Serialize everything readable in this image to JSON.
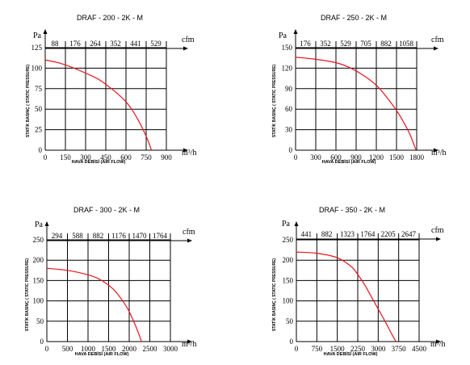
{
  "colors": {
    "curve": "#e8141e",
    "grid": "#000000",
    "text": "#000000"
  },
  "chart_data": [
    {
      "type": "line",
      "title": "DRAF - 200 - 2K - M",
      "y_unit": "Pa",
      "top_unit": "cfm",
      "x_unit": "m³/h",
      "ylabel": "STATİK BASINÇ ( STATIC PRESSURE)",
      "xlabel": "HAVA DEBİSİ (AIR FLOW)",
      "xlim": [
        0,
        900
      ],
      "ylim": [
        0,
        125
      ],
      "x_ticks": [
        0,
        150,
        300,
        450,
        600,
        750,
        900
      ],
      "y_ticks": [
        0,
        25,
        50,
        75,
        100,
        125
      ],
      "cfm_ticks": [
        88,
        176,
        264,
        352,
        441,
        529
      ],
      "grid": true,
      "series": [
        {
          "x": [
            0,
            100,
            200,
            300,
            400,
            500,
            550,
            600,
            650,
            700,
            750,
            790
          ],
          "y": [
            110,
            106.5,
            101,
            94,
            86,
            74,
            67,
            59,
            48,
            34,
            17,
            0
          ]
        }
      ]
    },
    {
      "type": "line",
      "title": "DRAF - 250 - 2K - M",
      "y_unit": "Pa",
      "top_unit": "cfm",
      "x_unit": "m³/h",
      "ylabel": "STATİK BASINÇ ( STATIC PRESSURE)",
      "xlabel": "HAVA DEBİSİ (AIR FLOW)",
      "xlim": [
        0,
        1800
      ],
      "ylim": [
        0,
        150
      ],
      "x_ticks": [
        0,
        300,
        600,
        900,
        1200,
        1500,
        1800
      ],
      "y_ticks": [
        0,
        30,
        60,
        90,
        120,
        150
      ],
      "cfm_ticks": [
        176,
        352,
        529,
        705,
        882,
        1058
      ],
      "grid": true,
      "series": [
        {
          "x": [
            0,
            300,
            600,
            800,
            1000,
            1200,
            1350,
            1500,
            1600,
            1700,
            1790
          ],
          "y": [
            136,
            133,
            128,
            121,
            110,
            95,
            78,
            58,
            42,
            23,
            0
          ]
        }
      ]
    },
    {
      "type": "line",
      "title": "DRAF - 300 - 2K - M",
      "y_unit": "Pa",
      "top_unit": "cfm",
      "x_unit": "m³/h",
      "ylabel": "STATİK BASINÇ ( STATIC PRESSURE)",
      "xlabel": "HAVA DEBİSİ (AIR FLOW)",
      "xlim": [
        0,
        3000
      ],
      "ylim": [
        0,
        250
      ],
      "x_ticks": [
        0,
        500,
        1000,
        1500,
        2000,
        2500,
        3000
      ],
      "y_ticks": [
        0,
        50,
        100,
        150,
        200,
        250
      ],
      "cfm_ticks": [
        294,
        588,
        882,
        1176,
        1470,
        1764
      ],
      "grid": true,
      "series": [
        {
          "x": [
            0,
            500,
            1000,
            1300,
            1600,
            1800,
            1950,
            2050,
            2150,
            2250,
            2300
          ],
          "y": [
            180,
            175,
            164,
            152,
            130,
            106,
            83,
            63,
            40,
            14,
            0
          ]
        }
      ]
    },
    {
      "type": "line",
      "title": "DRAF - 350 - 2K - M",
      "y_unit": "Pa",
      "top_unit": "cfm",
      "x_unit": "m³/h",
      "ylabel": "STATİK BASINÇ ( STATIC PRESSURE)",
      "xlabel": "HAVA DEBİSİ (AIR FLOW)",
      "xlim": [
        0,
        4500
      ],
      "ylim": [
        0,
        250
      ],
      "x_ticks": [
        0,
        750,
        1500,
        2250,
        3000,
        3750,
        4500
      ],
      "y_ticks": [
        0,
        50,
        100,
        150,
        200,
        250
      ],
      "cfm_ticks": [
        441,
        882,
        1323,
        1764,
        2205,
        2647
      ],
      "grid": true,
      "series": [
        {
          "x": [
            0,
            750,
            1500,
            2000,
            2250,
            2500,
            2750,
            3000,
            3250,
            3500,
            3650
          ],
          "y": [
            220,
            217,
            206,
            185,
            165,
            140,
            110,
            80,
            50,
            18,
            0
          ]
        }
      ]
    }
  ]
}
